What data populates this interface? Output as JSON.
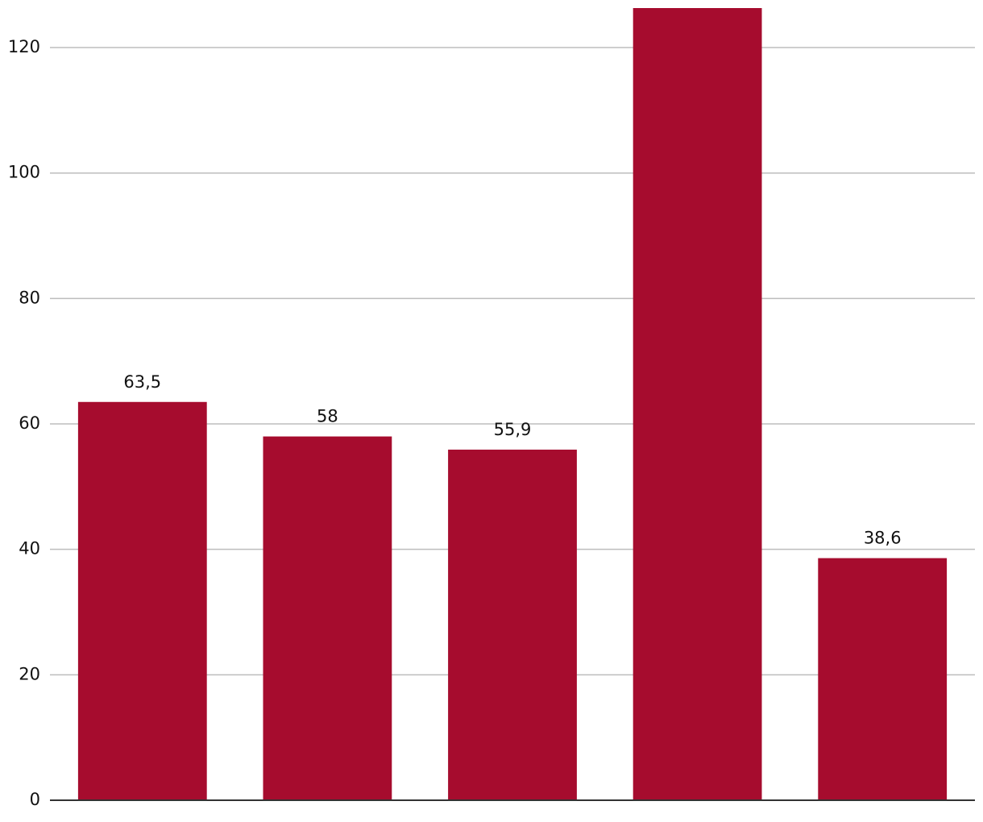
{
  "chart_data": {
    "type": "bar",
    "categories": [
      null,
      null,
      null,
      null,
      null
    ],
    "values": [
      63.5,
      58,
      55.9,
      126.3,
      38.6
    ],
    "value_labels": [
      "63,5",
      "58",
      "55,9",
      null,
      "38,6"
    ],
    "color": "#a60c2e",
    "ylim": [
      0,
      126.3
    ],
    "yticks": [
      0,
      20,
      40,
      60,
      80,
      100,
      120
    ],
    "grid": true
  }
}
